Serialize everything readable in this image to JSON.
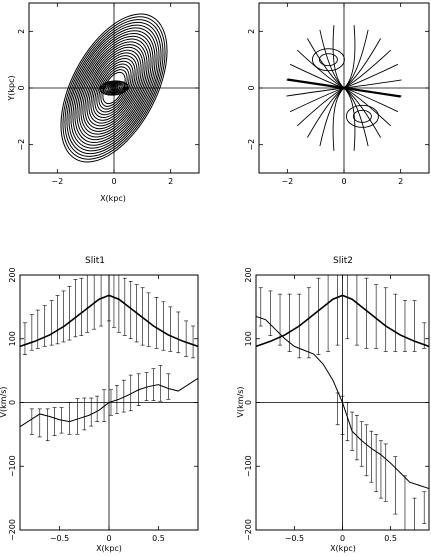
{
  "chart_data": [
    {
      "type": "contour",
      "xlabel": "X(kpc)",
      "ylabel": "Y(kpc)",
      "xlim": [
        -3,
        3
      ],
      "ylim": [
        -3,
        3
      ],
      "xticks": [
        -2,
        0,
        2
      ],
      "yticks": [
        -2,
        0,
        2
      ],
      "xtick_labels": [
        "−2",
        "0",
        "2"
      ],
      "ytick_labels": [
        "−2",
        "0",
        "2"
      ],
      "elements": "concentric tilted elliptical orbits",
      "inner_rings": {
        "count": 8,
        "a_min": 0.08,
        "a_max": 0.5,
        "axis_ratio": 0.5,
        "pa_deg": -5
      },
      "outer_rings": {
        "count": 22,
        "a_min": 0.6,
        "a_max": 2.85,
        "axis_ratio": 0.52,
        "pa_deg": -62
      },
      "grid_lines_at_zero": true
    },
    {
      "type": "contour",
      "xlabel": "",
      "ylabel": "",
      "xlim": [
        -3,
        3
      ],
      "ylim": [
        -3,
        3
      ],
      "xticks": [
        -2,
        0,
        2
      ],
      "yticks": [
        -2,
        0,
        2
      ],
      "xtick_labels": [
        "−2",
        "0",
        "2"
      ],
      "ytick_labels": [
        "−2",
        "0",
        "2"
      ],
      "elements": "velocity-field isovelocity contours",
      "major_axis_line": {
        "x1": -2.0,
        "y1": 0.3,
        "x2": 2.0,
        "y2": -0.3
      },
      "contour_count": 12,
      "grid_lines_at_zero": true
    },
    {
      "type": "line",
      "title": "Slit1",
      "xlabel": "X(kpc)",
      "ylabel": "V(km/s)",
      "xlim": [
        -0.9,
        0.9
      ],
      "ylim": [
        -200,
        200
      ],
      "xticks": [
        -0.5,
        0,
        0.5
      ],
      "yticks": [
        -200,
        -100,
        0,
        100,
        200
      ],
      "xtick_labels": [
        "−0.5",
        "0",
        "0.5"
      ],
      "ytick_labels": [
        "−200",
        "−100",
        "0",
        "100",
        "200"
      ],
      "series": [
        {
          "kind": "curve",
          "x": [
            -0.9,
            -0.75,
            -0.6,
            -0.45,
            -0.3,
            -0.2,
            -0.1,
            0,
            0.1,
            0.2,
            0.3,
            0.45,
            0.6,
            0.75,
            0.9
          ],
          "y": [
            88,
            96,
            106,
            120,
            138,
            150,
            162,
            168,
            162,
            150,
            138,
            120,
            106,
            96,
            88
          ]
        },
        {
          "kind": "curve",
          "x": [
            -0.9,
            -0.8,
            -0.7,
            -0.6,
            -0.5,
            -0.4,
            -0.3,
            -0.2,
            -0.1,
            0,
            0.1,
            0.2,
            0.3,
            0.4,
            0.5,
            0.6,
            0.7,
            0.8,
            0.9
          ],
          "y": [
            -38,
            -28,
            -18,
            -22,
            -27,
            -30,
            -25,
            -20,
            -12,
            0,
            5,
            12,
            20,
            25,
            28,
            22,
            18,
            28,
            38
          ]
        },
        {
          "kind": "errorbars",
          "x": [
            -0.85,
            -0.78,
            -0.72,
            -0.65,
            -0.58,
            -0.52,
            -0.46,
            -0.4,
            -0.34,
            -0.28,
            -0.22,
            -0.15,
            -0.08,
            0,
            0.05,
            0.1,
            0.16,
            0.22,
            0.28,
            0.34,
            0.4,
            0.48,
            0.55,
            0.62,
            0.7,
            0.78,
            0.85
          ],
          "y": [
            100,
            110,
            115,
            120,
            125,
            130,
            135,
            140,
            148,
            150,
            155,
            160,
            162,
            168,
            160,
            155,
            150,
            145,
            140,
            135,
            130,
            125,
            120,
            115,
            110,
            100,
            95
          ],
          "err": [
            25,
            28,
            30,
            32,
            35,
            38,
            40,
            42,
            45,
            45,
            45,
            45,
            42,
            40,
            42,
            45,
            45,
            45,
            45,
            45,
            42,
            40,
            38,
            35,
            32,
            28,
            25
          ]
        },
        {
          "kind": "errorbars",
          "x": [
            -0.78,
            -0.7,
            -0.62,
            -0.55,
            -0.48,
            -0.4,
            -0.32,
            -0.25,
            -0.18,
            -0.12,
            -0.05,
            0.02,
            0.08,
            0.15,
            0.22,
            0.3,
            0.38,
            0.45,
            0.52,
            0.6
          ],
          "y": [
            -30,
            -32,
            -35,
            -30,
            -28,
            -25,
            -22,
            -18,
            -15,
            -10,
            -5,
            0,
            5,
            10,
            15,
            20,
            25,
            28,
            30,
            25
          ],
          "err": [
            20,
            22,
            25,
            22,
            20,
            25,
            28,
            25,
            22,
            20,
            25,
            20,
            22,
            25,
            28,
            25,
            22,
            25,
            28,
            20
          ]
        }
      ]
    },
    {
      "type": "line",
      "title": "Slit2",
      "xlabel": "X(kpc)",
      "ylabel": "V(km/s)",
      "xlim": [
        -0.9,
        0.9
      ],
      "ylim": [
        -200,
        200
      ],
      "xticks": [
        -0.5,
        0,
        0.5
      ],
      "yticks": [
        -200,
        -100,
        0,
        100,
        200
      ],
      "xtick_labels": [
        "−0.5",
        "0",
        "0.5"
      ],
      "ytick_labels": [
        "−200",
        "−100",
        "0",
        "100",
        "200"
      ],
      "series": [
        {
          "kind": "curve",
          "x": [
            -0.9,
            -0.75,
            -0.6,
            -0.45,
            -0.3,
            -0.2,
            -0.1,
            0,
            0.1,
            0.2,
            0.3,
            0.45,
            0.6,
            0.75,
            0.9
          ],
          "y": [
            88,
            96,
            106,
            120,
            138,
            150,
            162,
            168,
            162,
            150,
            138,
            120,
            106,
            96,
            88
          ]
        },
        {
          "kind": "curve",
          "x": [
            -0.9,
            -0.8,
            -0.7,
            -0.6,
            -0.5,
            -0.4,
            -0.3,
            -0.2,
            -0.1,
            0,
            0.1,
            0.2,
            0.3,
            0.4,
            0.5,
            0.6,
            0.7,
            0.8,
            0.9
          ],
          "y": [
            135,
            130,
            115,
            100,
            88,
            82,
            76,
            60,
            35,
            0,
            -45,
            -60,
            -72,
            -82,
            -95,
            -110,
            -125,
            -130,
            -135
          ]
        },
        {
          "kind": "errorbars",
          "x": [
            -0.85,
            -0.75,
            -0.65,
            -0.55,
            -0.45,
            -0.35,
            -0.25,
            -0.15,
            -0.05,
            0.05,
            0.15,
            0.25,
            0.35,
            0.45,
            0.55,
            0.65,
            0.75,
            0.85
          ],
          "y": [
            150,
            140,
            130,
            125,
            120,
            125,
            135,
            140,
            150,
            155,
            145,
            140,
            135,
            130,
            125,
            120,
            120,
            105
          ],
          "err": [
            30,
            35,
            40,
            45,
            50,
            55,
            60,
            60,
            60,
            55,
            55,
            55,
            50,
            50,
            45,
            40,
            40,
            20
          ]
        },
        {
          "kind": "errorbars",
          "x": [
            -0.05,
            0.0,
            0.05,
            0.1,
            0.15,
            0.2,
            0.25,
            0.3,
            0.35,
            0.4,
            0.45,
            0.55,
            0.65,
            0.75,
            0.85
          ],
          "y": [
            -10,
            -20,
            -30,
            -45,
            -55,
            -65,
            -75,
            -85,
            -95,
            -105,
            -110,
            -130,
            -160,
            -180,
            -165
          ],
          "err": [
            25,
            30,
            30,
            30,
            35,
            35,
            40,
            40,
            45,
            45,
            45,
            45,
            45,
            30,
            25
          ]
        }
      ]
    }
  ]
}
